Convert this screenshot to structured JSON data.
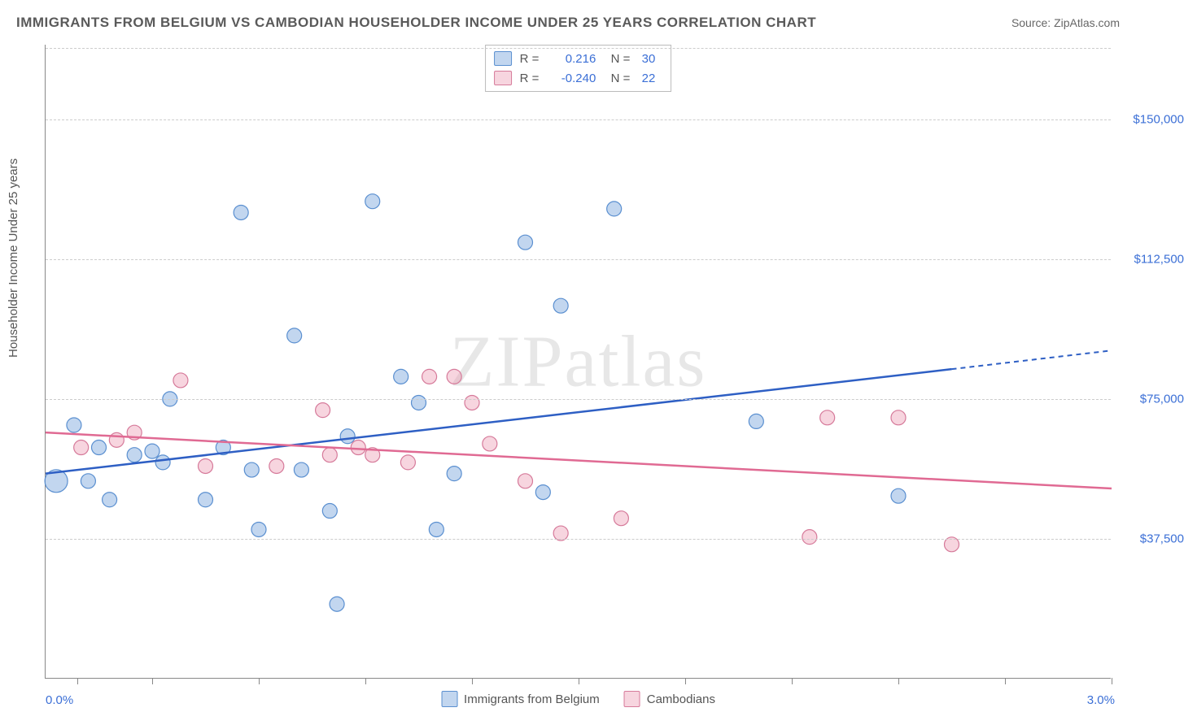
{
  "title": "IMMIGRANTS FROM BELGIUM VS CAMBODIAN HOUSEHOLDER INCOME UNDER 25 YEARS CORRELATION CHART",
  "source": "Source: ZipAtlas.com",
  "ylabel": "Householder Income Under 25 years",
  "watermark": "ZIPatlas",
  "chart": {
    "type": "scatter",
    "xlim": [
      0.0,
      3.0
    ],
    "ylim": [
      0,
      170000
    ],
    "x_tick_labels": [
      "0.0%",
      "3.0%"
    ],
    "x_tick_positions_pct": [
      3,
      10,
      20,
      30,
      40,
      50,
      60,
      70,
      80,
      90,
      100
    ],
    "y_gridlines": [
      37500,
      75000,
      112500,
      150000
    ],
    "y_tick_labels": [
      "$37,500",
      "$75,000",
      "$112,500",
      "$150,000"
    ],
    "background_color": "#ffffff",
    "grid_color": "#cccccc",
    "axis_color": "#888888",
    "label_color": "#3b6fd6",
    "series": [
      {
        "name": "Immigrants from Belgium",
        "fill": "rgba(120,165,220,0.45)",
        "stroke": "#5a8fd0",
        "line_color": "#2e5fc4",
        "r_value": "0.216",
        "n_value": "30",
        "trend": {
          "x1": 0.0,
          "y1": 55000,
          "x2": 2.55,
          "y2": 83000,
          "dash_x2": 3.0,
          "dash_y2": 88000
        },
        "points": [
          {
            "x": 0.03,
            "y": 53000,
            "r": 14
          },
          {
            "x": 0.08,
            "y": 68000,
            "r": 9
          },
          {
            "x": 0.12,
            "y": 53000,
            "r": 9
          },
          {
            "x": 0.18,
            "y": 48000,
            "r": 9
          },
          {
            "x": 0.15,
            "y": 62000,
            "r": 9
          },
          {
            "x": 0.25,
            "y": 60000,
            "r": 9
          },
          {
            "x": 0.3,
            "y": 61000,
            "r": 9
          },
          {
            "x": 0.33,
            "y": 58000,
            "r": 9
          },
          {
            "x": 0.35,
            "y": 75000,
            "r": 9
          },
          {
            "x": 0.45,
            "y": 48000,
            "r": 9
          },
          {
            "x": 0.55,
            "y": 125000,
            "r": 9
          },
          {
            "x": 0.58,
            "y": 56000,
            "r": 9
          },
          {
            "x": 0.6,
            "y": 40000,
            "r": 9
          },
          {
            "x": 0.7,
            "y": 92000,
            "r": 9
          },
          {
            "x": 0.72,
            "y": 56000,
            "r": 9
          },
          {
            "x": 0.8,
            "y": 45000,
            "r": 9
          },
          {
            "x": 0.82,
            "y": 20000,
            "r": 9
          },
          {
            "x": 0.85,
            "y": 65000,
            "r": 9
          },
          {
            "x": 0.92,
            "y": 128000,
            "r": 9
          },
          {
            "x": 1.0,
            "y": 81000,
            "r": 9
          },
          {
            "x": 1.05,
            "y": 74000,
            "r": 9
          },
          {
            "x": 1.1,
            "y": 40000,
            "r": 9
          },
          {
            "x": 1.15,
            "y": 55000,
            "r": 9
          },
          {
            "x": 1.35,
            "y": 117000,
            "r": 9
          },
          {
            "x": 1.4,
            "y": 50000,
            "r": 9
          },
          {
            "x": 1.45,
            "y": 100000,
            "r": 9
          },
          {
            "x": 1.6,
            "y": 126000,
            "r": 9
          },
          {
            "x": 2.0,
            "y": 69000,
            "r": 9
          },
          {
            "x": 2.4,
            "y": 49000,
            "r": 9
          },
          {
            "x": 0.5,
            "y": 62000,
            "r": 9
          }
        ]
      },
      {
        "name": "Cambodians",
        "fill": "rgba(235,150,175,0.40)",
        "stroke": "#d67a9a",
        "line_color": "#e06a93",
        "r_value": "-0.240",
        "n_value": "22",
        "trend": {
          "x1": 0.0,
          "y1": 66000,
          "x2": 3.0,
          "y2": 51000
        },
        "points": [
          {
            "x": 0.1,
            "y": 62000,
            "r": 9
          },
          {
            "x": 0.2,
            "y": 64000,
            "r": 9
          },
          {
            "x": 0.25,
            "y": 66000,
            "r": 9
          },
          {
            "x": 0.38,
            "y": 80000,
            "r": 9
          },
          {
            "x": 0.45,
            "y": 57000,
            "r": 9
          },
          {
            "x": 0.65,
            "y": 57000,
            "r": 9
          },
          {
            "x": 0.78,
            "y": 72000,
            "r": 9
          },
          {
            "x": 0.8,
            "y": 60000,
            "r": 9
          },
          {
            "x": 0.92,
            "y": 60000,
            "r": 9
          },
          {
            "x": 1.02,
            "y": 58000,
            "r": 9
          },
          {
            "x": 1.08,
            "y": 81000,
            "r": 9
          },
          {
            "x": 1.15,
            "y": 81000,
            "r": 9
          },
          {
            "x": 1.2,
            "y": 74000,
            "r": 9
          },
          {
            "x": 1.25,
            "y": 63000,
            "r": 9
          },
          {
            "x": 1.35,
            "y": 53000,
            "r": 9
          },
          {
            "x": 1.45,
            "y": 39000,
            "r": 9
          },
          {
            "x": 1.62,
            "y": 43000,
            "r": 9
          },
          {
            "x": 2.15,
            "y": 38000,
            "r": 9
          },
          {
            "x": 2.2,
            "y": 70000,
            "r": 9
          },
          {
            "x": 2.4,
            "y": 70000,
            "r": 9
          },
          {
            "x": 2.55,
            "y": 36000,
            "r": 9
          },
          {
            "x": 0.88,
            "y": 62000,
            "r": 9
          }
        ]
      }
    ]
  },
  "legend_bottom": [
    {
      "label": "Immigrants from Belgium",
      "fill": "rgba(120,165,220,0.45)",
      "stroke": "#5a8fd0"
    },
    {
      "label": "Cambodians",
      "fill": "rgba(235,150,175,0.40)",
      "stroke": "#d67a9a"
    }
  ]
}
